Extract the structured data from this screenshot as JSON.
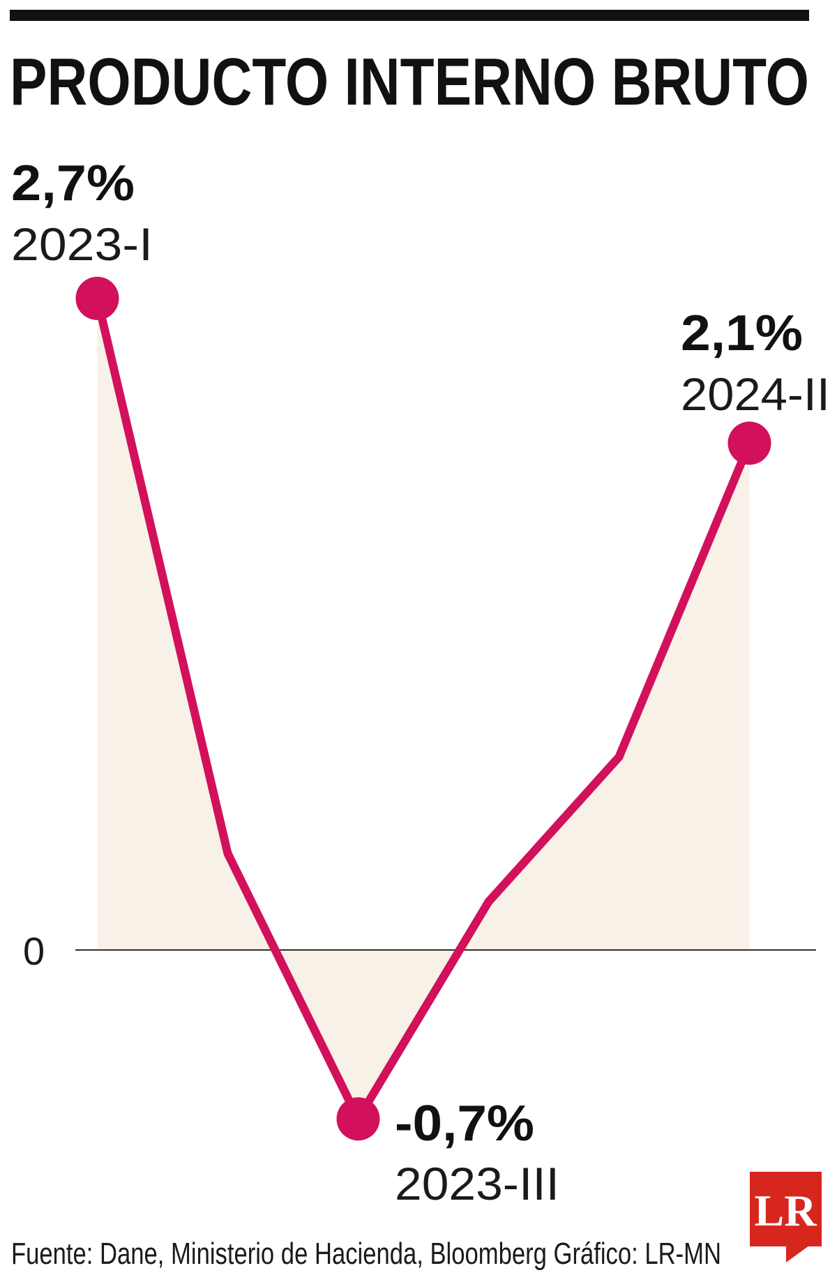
{
  "title": "PRODUCTO INTERNO BRUTO",
  "footer": {
    "source": "Fuente: Dane, Ministerio de Hacienda, Bloomberg  Gráfico: LR-MN"
  },
  "logo": {
    "text": "LR"
  },
  "colors": {
    "line": "#D2105B",
    "area": "#F7F1E7",
    "baseline": "#111111",
    "logo": "#D7261E"
  },
  "chart_data": {
    "type": "area",
    "title": "PRODUCTO INTERNO BRUTO",
    "xlabel": "",
    "ylabel": "",
    "ylim": [
      -0.7,
      2.7
    ],
    "y_tick_labels": [
      "0"
    ],
    "grid": false,
    "legend": false,
    "points": [
      {
        "period": "2023-I",
        "value": 2.7,
        "label": "2,7%"
      },
      {
        "value": 0.4
      },
      {
        "period": "2023-III",
        "value": -0.7,
        "label": "-0,7%"
      },
      {
        "value": 0.2
      },
      {
        "value": 0.8
      },
      {
        "period": "2024-II",
        "value": 2.1,
        "label": "2,1%"
      }
    ]
  }
}
